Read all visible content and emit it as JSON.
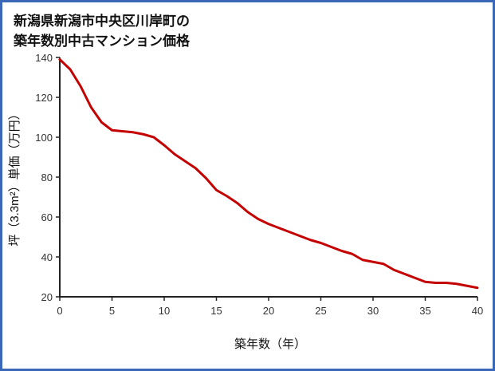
{
  "page": {
    "title_line1": "新潟県新潟市中央区川岸町の",
    "title_line2": "築年数別中古マンション価格",
    "border_color": "#3b67b8"
  },
  "chart_data": {
    "type": "line",
    "title": "新潟県新潟市中央区川岸町の築年数別中古マンション価格",
    "xlabel": "築年数（年）",
    "ylabel": "坪（3.3m²）単価（万円）",
    "xlim": [
      0,
      40
    ],
    "ylim": [
      20,
      140
    ],
    "x_ticks": [
      0,
      5,
      10,
      15,
      20,
      25,
      30,
      35,
      40
    ],
    "y_ticks": [
      20,
      40,
      60,
      80,
      100,
      120,
      140
    ],
    "grid": false,
    "legend_position": "none",
    "series": [
      {
        "name": "坪単価（万円）",
        "color": "#c40000",
        "x": [
          0,
          1,
          2,
          3,
          4,
          5,
          6,
          7,
          8,
          9,
          10,
          11,
          12,
          13,
          14,
          15,
          16,
          17,
          18,
          19,
          20,
          21,
          22,
          23,
          24,
          25,
          26,
          27,
          28,
          29,
          30,
          31,
          32,
          33,
          34,
          35,
          36,
          37,
          38,
          39,
          40
        ],
        "values": [
          139,
          134,
          125.5,
          115,
          107.5,
          103.5,
          103,
          102.5,
          101.5,
          100,
          96,
          91.5,
          88,
          84.5,
          79.5,
          73.5,
          70.5,
          67,
          62.5,
          59,
          56.5,
          54.5,
          52.5,
          50.5,
          48.5,
          47,
          45,
          43,
          41.5,
          38.5,
          37.5,
          36.5,
          33.5,
          31.5,
          29.5,
          27.5,
          27,
          27,
          26.5,
          25.5,
          24.5
        ]
      }
    ]
  }
}
